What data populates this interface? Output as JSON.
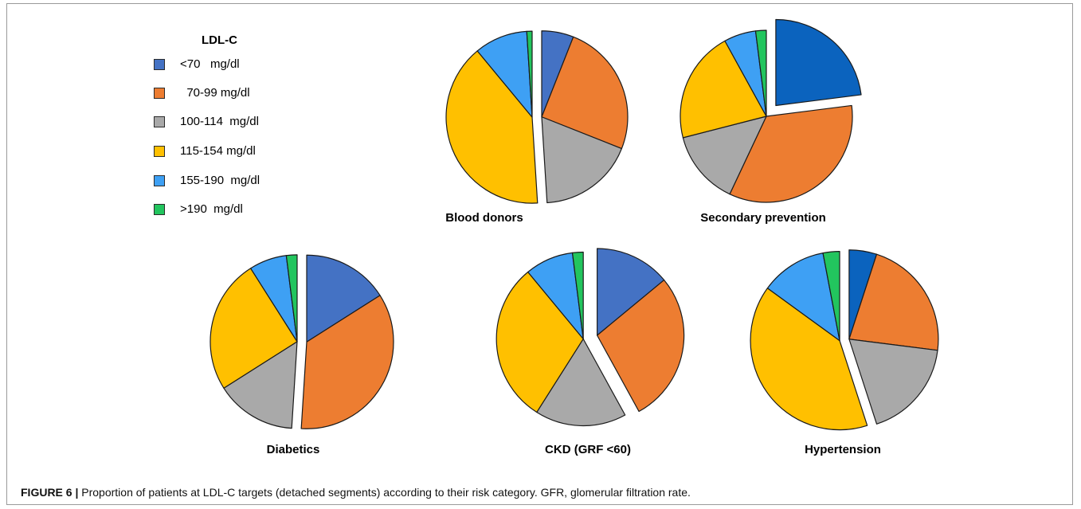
{
  "caption": {
    "label": "FIGURE 6 |",
    "text": " Proportion of patients at LDL-C targets (detached segments) according to their risk category. GFR, glomerular filtration rate."
  },
  "legend": {
    "title": "LDL-C",
    "items": [
      {
        "label": "<70   mg/dl",
        "color": "#4472c4"
      },
      {
        "label": "  70-99 mg/dl",
        "color": "#ed7d31"
      },
      {
        "label": "100-114  mg/dl",
        "color": "#a9a9a9"
      },
      {
        "label": "115-154 mg/dl",
        "color": "#ffc000"
      },
      {
        "label": "155-190  mg/dl",
        "color": "#3ea0f4"
      },
      {
        "label": ">190  mg/dl",
        "color": "#22c55e"
      }
    ]
  },
  "chart_data": [
    {
      "type": "pie",
      "title": "Blood donors",
      "categories": [
        "<70 mg/dl",
        "70-99 mg/dl",
        "100-114 mg/dl",
        "115-154 mg/dl",
        "155-190 mg/dl",
        ">190 mg/dl"
      ],
      "values": [
        6,
        25,
        18,
        40,
        10,
        1
      ],
      "colors": [
        "#4472c4",
        "#ed7d31",
        "#a9a9a9",
        "#ffc000",
        "#3ea0f4",
        "#22c55e"
      ],
      "detached": [
        0,
        1,
        2
      ]
    },
    {
      "type": "pie",
      "title": "Secondary prevention",
      "categories": [
        "<70 mg/dl",
        "70-99 mg/dl",
        "100-114 mg/dl",
        "115-154 mg/dl",
        "155-190 mg/dl",
        ">190 mg/dl"
      ],
      "values": [
        23,
        34,
        14,
        21,
        6,
        2
      ],
      "colors": [
        "#0b63be",
        "#ed7d31",
        "#a9a9a9",
        "#ffc000",
        "#3ea0f4",
        "#22c55e"
      ],
      "detached": [
        0
      ]
    },
    {
      "type": "pie",
      "title": "Diabetics",
      "categories": [
        "<70 mg/dl",
        "70-99 mg/dl",
        "100-114 mg/dl",
        "115-154 mg/dl",
        "155-190 mg/dl",
        ">190 mg/dl"
      ],
      "values": [
        16,
        35,
        15,
        25,
        7,
        2
      ],
      "colors": [
        "#4472c4",
        "#ed7d31",
        "#a9a9a9",
        "#ffc000",
        "#3ea0f4",
        "#22c55e"
      ],
      "detached": [
        0,
        1
      ]
    },
    {
      "type": "pie",
      "title": "CKD (GRF <60)",
      "categories": [
        "<70 mg/dl",
        "70-99 mg/dl",
        "100-114 mg/dl",
        "115-154 mg/dl",
        "155-190 mg/dl",
        ">190 mg/dl"
      ],
      "values": [
        14,
        28,
        17,
        30,
        9,
        2
      ],
      "colors": [
        "#4472c4",
        "#ed7d31",
        "#a9a9a9",
        "#ffc000",
        "#3ea0f4",
        "#22c55e"
      ],
      "detached": [
        0,
        1
      ]
    },
    {
      "type": "pie",
      "title": "Hypertension",
      "categories": [
        "<70 mg/dl",
        "70-99 mg/dl",
        "100-114 mg/dl",
        "115-154 mg/dl",
        "155-190 mg/dl",
        ">190 mg/dl"
      ],
      "values": [
        5,
        22,
        18,
        40,
        12,
        3
      ],
      "colors": [
        "#0b63be",
        "#ed7d31",
        "#a9a9a9",
        "#ffc000",
        "#3ea0f4",
        "#22c55e"
      ],
      "detached": [
        0,
        1,
        2
      ]
    }
  ]
}
